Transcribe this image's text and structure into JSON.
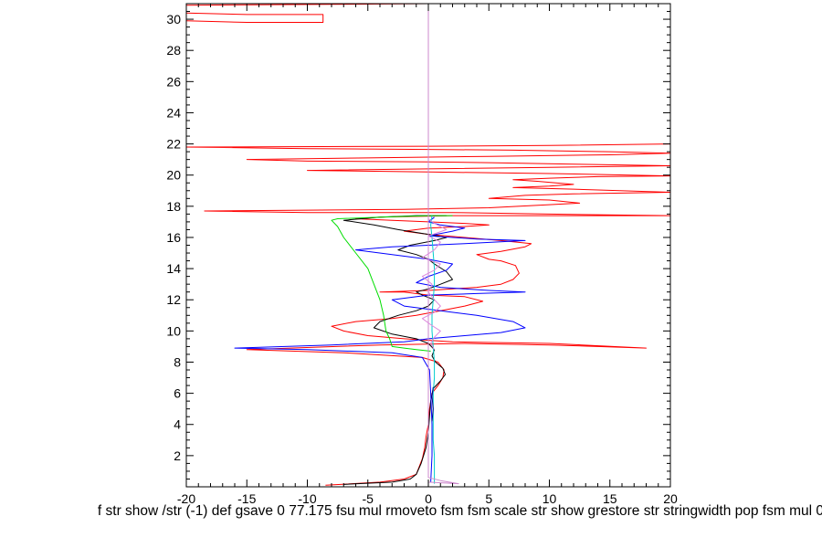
{
  "chart_data": {
    "type": "line",
    "xlim": [
      -20,
      20
    ],
    "ylim": [
      0,
      31
    ],
    "x_ticks": [
      -20,
      -15,
      -10,
      -5,
      0,
      5,
      10,
      15,
      20
    ],
    "y_ticks": [
      2,
      4,
      6,
      8,
      10,
      12,
      14,
      16,
      18,
      20,
      22,
      24,
      26,
      28,
      30
    ],
    "grid": false,
    "legend": "none",
    "caption": "f str show /str (-1) def gsave 0 77.175 fsu mul rmoveto fsm fsm scale str show grestore str stringwidth pop fsm mul 0",
    "series": [
      {
        "color": "#ff0000",
        "points": [
          [
            -8.5,
            0.1
          ],
          [
            -4,
            0.3
          ],
          [
            -2,
            0.5
          ],
          [
            -1,
            0.8
          ],
          [
            -0.8,
            1.2
          ],
          [
            -0.5,
            1.8
          ],
          [
            -0.3,
            2.5
          ],
          [
            -0.2,
            3.2
          ],
          [
            0,
            4
          ],
          [
            0.1,
            5
          ],
          [
            0.3,
            6
          ],
          [
            0.8,
            6.5
          ],
          [
            1.2,
            7
          ],
          [
            1.3,
            7.5
          ],
          [
            0.8,
            8
          ],
          [
            -0.5,
            8.3
          ],
          [
            -7,
            8.6
          ],
          [
            -15,
            8.8
          ],
          [
            -4,
            9.1
          ],
          [
            3,
            9.2
          ],
          [
            10,
            9.1
          ],
          [
            18,
            8.9
          ],
          [
            10,
            9.2
          ],
          [
            2,
            9.3
          ],
          [
            -2,
            9.5
          ],
          [
            -5,
            9.7
          ],
          [
            -7,
            10
          ],
          [
            -8,
            10.3
          ],
          [
            -6,
            10.6
          ],
          [
            -3,
            10.8
          ],
          [
            -1,
            11
          ],
          [
            1,
            11.3
          ],
          [
            3,
            11.6
          ],
          [
            4.5,
            11.9
          ],
          [
            3,
            12.2
          ],
          [
            0,
            12.3
          ],
          [
            -2,
            12.5
          ],
          [
            -4,
            12.5
          ],
          [
            0,
            12.6
          ],
          [
            4,
            12.8
          ],
          [
            6,
            13
          ],
          [
            7,
            13.3
          ],
          [
            7.5,
            13.7
          ],
          [
            7.2,
            14.2
          ],
          [
            6,
            14.5
          ],
          [
            5,
            14.6
          ],
          [
            4,
            14.9
          ],
          [
            6,
            15.1
          ],
          [
            8,
            15.4
          ],
          [
            8.5,
            15.6
          ],
          [
            6,
            15.8
          ],
          [
            3,
            16
          ],
          [
            0,
            16.2
          ],
          [
            -2,
            16.4
          ],
          [
            0,
            16.6
          ],
          [
            3,
            16.7
          ],
          [
            5,
            16.8
          ],
          [
            3,
            16.9
          ],
          [
            0,
            17
          ],
          [
            -3,
            17.1
          ],
          [
            -6,
            17.2
          ],
          [
            -4,
            17.3
          ],
          [
            2,
            17.4
          ],
          [
            8,
            17.4
          ],
          [
            20,
            17.4
          ],
          [
            10,
            17.5
          ],
          [
            2,
            17.6
          ],
          [
            -10,
            17.6
          ],
          [
            -18.5,
            17.7
          ],
          [
            -10,
            17.75
          ],
          [
            -2,
            17.8
          ],
          [
            5,
            17.9
          ],
          [
            10,
            18.1
          ],
          [
            12.5,
            18.2
          ],
          [
            10,
            18.4
          ],
          [
            5,
            18.5
          ],
          [
            8,
            18.7
          ],
          [
            12,
            18.8
          ],
          [
            20,
            18.9
          ],
          [
            12,
            19.1
          ],
          [
            7,
            19.2
          ],
          [
            10,
            19.3
          ],
          [
            12,
            19.4
          ],
          [
            9,
            19.6
          ],
          [
            7,
            19.7
          ],
          [
            10,
            19.8
          ],
          [
            14,
            19.9
          ],
          [
            20,
            19.95
          ],
          [
            10,
            20.1
          ],
          [
            0,
            20.2
          ],
          [
            -10,
            20.3
          ],
          [
            0,
            20.4
          ],
          [
            10,
            20.5
          ],
          [
            20,
            20.6
          ],
          [
            12,
            20.7
          ],
          [
            5,
            20.8
          ],
          [
            0,
            20.85
          ],
          [
            -10,
            20.9
          ],
          [
            -15,
            21
          ],
          [
            -5,
            21.1
          ],
          [
            5,
            21.2
          ],
          [
            15,
            21.3
          ],
          [
            20,
            21.4
          ],
          [
            15,
            21.5
          ],
          [
            7,
            21.6
          ],
          [
            0,
            21.65
          ],
          [
            -10,
            21.7
          ],
          [
            -20,
            21.8
          ],
          [
            0,
            21.85
          ],
          [
            10,
            21.9
          ],
          [
            20,
            22
          ]
        ]
      },
      {
        "color": "#ff0000",
        "points": [
          [
            -20,
            29.9
          ],
          [
            -15,
            29.8
          ],
          [
            -8.7,
            29.8
          ],
          [
            -8.7,
            30.3
          ],
          [
            -15,
            30.3
          ],
          [
            -20,
            30.4
          ]
        ]
      },
      {
        "color": "#ff0000",
        "points": [
          [
            -20,
            30.9
          ],
          [
            -10,
            30.95
          ],
          [
            0,
            31
          ]
        ]
      },
      {
        "color": "#000000",
        "points": [
          [
            -7,
            0.15
          ],
          [
            -3,
            0.3
          ],
          [
            -1.5,
            0.5
          ],
          [
            -1,
            0.8
          ],
          [
            -0.6,
            1.5
          ],
          [
            -0.2,
            2.5
          ],
          [
            0,
            3.5
          ],
          [
            0.1,
            4.5
          ],
          [
            0.2,
            5.5
          ],
          [
            0.4,
            6.3
          ],
          [
            1,
            6.8
          ],
          [
            1.4,
            7.2
          ],
          [
            1.2,
            7.6
          ],
          [
            0.6,
            8
          ],
          [
            0.3,
            8.4
          ],
          [
            0.5,
            8.8
          ],
          [
            0,
            9.2
          ],
          [
            -1,
            9.5
          ],
          [
            -3,
            9.8
          ],
          [
            -4.5,
            10.2
          ],
          [
            -4,
            10.6
          ],
          [
            -2.5,
            11
          ],
          [
            -1,
            11.3
          ],
          [
            0,
            11.6
          ],
          [
            0.5,
            12
          ],
          [
            -0.5,
            12.3
          ],
          [
            -1,
            12.5
          ],
          [
            0,
            12.7
          ],
          [
            1,
            13
          ],
          [
            2,
            13.3
          ],
          [
            1.5,
            13.8
          ],
          [
            0.5,
            14.3
          ],
          [
            0,
            14.6
          ],
          [
            -1,
            14.9
          ],
          [
            -2.5,
            15.2
          ],
          [
            -1.5,
            15.5
          ],
          [
            0.5,
            15.8
          ],
          [
            1.5,
            16
          ],
          [
            0,
            16.2
          ],
          [
            -2.5,
            16.5
          ],
          [
            -4.5,
            16.8
          ],
          [
            -7,
            17.1
          ],
          [
            -4,
            17.3
          ],
          [
            -1,
            17.4
          ],
          [
            1.5,
            17.4
          ]
        ]
      },
      {
        "color": "#0000ff",
        "points": [
          [
            0.2,
            0.3
          ],
          [
            0.3,
            2
          ],
          [
            0.3,
            4
          ],
          [
            0.2,
            6
          ],
          [
            0.1,
            7.5
          ],
          [
            -0.5,
            8.3
          ],
          [
            -3,
            8.6
          ],
          [
            -10,
            8.8
          ],
          [
            -16,
            8.9
          ],
          [
            -8,
            9.1
          ],
          [
            -2,
            9.3
          ],
          [
            0,
            9.5
          ],
          [
            3,
            9.7
          ],
          [
            6,
            9.9
          ],
          [
            8,
            10.2
          ],
          [
            7,
            10.6
          ],
          [
            4,
            11
          ],
          [
            1,
            11.3
          ],
          [
            -2,
            11.6
          ],
          [
            -3,
            12
          ],
          [
            0,
            12.3
          ],
          [
            4,
            12.4
          ],
          [
            8,
            12.5
          ],
          [
            5,
            12.6
          ],
          [
            1,
            12.8
          ],
          [
            -1,
            13.1
          ],
          [
            0,
            13.5
          ],
          [
            1.5,
            13.9
          ],
          [
            2,
            14.3
          ],
          [
            0,
            14.6
          ],
          [
            -3,
            14.9
          ],
          [
            -6,
            15.2
          ],
          [
            -3,
            15.4
          ],
          [
            3,
            15.6
          ],
          [
            8,
            15.8
          ],
          [
            4,
            15.9
          ],
          [
            0,
            16.1
          ],
          [
            2,
            16.4
          ],
          [
            3,
            16.6
          ],
          [
            1,
            16.8
          ],
          [
            0,
            17
          ],
          [
            0.5,
            17.3
          ]
        ]
      },
      {
        "color": "#00dd00",
        "points": [
          [
            0.2,
            8.7
          ],
          [
            -1,
            8.8
          ],
          [
            -2,
            8.9
          ],
          [
            -3,
            9
          ],
          [
            -3.2,
            9.5
          ],
          [
            -3.5,
            10
          ],
          [
            -3.7,
            11
          ],
          [
            -4,
            12
          ],
          [
            -4.5,
            13
          ],
          [
            -5,
            14
          ],
          [
            -6,
            15
          ],
          [
            -7,
            16
          ],
          [
            -7.5,
            16.7
          ],
          [
            -8,
            17.1
          ],
          [
            -7.5,
            17.2
          ],
          [
            -4,
            17.3
          ],
          [
            0,
            17.4
          ],
          [
            2,
            17.4
          ]
        ]
      },
      {
        "color": "#00cccc",
        "points": [
          [
            0.5,
            0.2
          ],
          [
            0.5,
            1
          ],
          [
            0.5,
            2
          ],
          [
            0.4,
            3
          ],
          [
            0.4,
            4
          ],
          [
            0.4,
            5
          ],
          [
            0.4,
            6
          ],
          [
            0.5,
            7
          ],
          [
            0.5,
            8
          ],
          [
            0.4,
            9
          ],
          [
            0.3,
            10
          ],
          [
            0.3,
            11
          ],
          [
            0.4,
            12
          ],
          [
            0.5,
            13
          ],
          [
            0.5,
            14
          ],
          [
            0.4,
            15
          ],
          [
            0.3,
            16
          ],
          [
            0.2,
            16.8
          ],
          [
            0.3,
            17.4
          ]
        ]
      },
      {
        "color": "#cc88cc",
        "points": [
          [
            0,
            0.3
          ],
          [
            2.5,
            0.2
          ],
          [
            1,
            0.4
          ],
          [
            0,
            0.6
          ],
          [
            0,
            31
          ]
        ]
      },
      {
        "color": "#dd88dd",
        "points": [
          [
            0.5,
            8.8
          ],
          [
            0.2,
            9.2
          ],
          [
            0.5,
            9.6
          ],
          [
            1,
            10
          ],
          [
            0.2,
            10.4
          ],
          [
            -0.5,
            10.8
          ],
          [
            0.5,
            11.2
          ],
          [
            1,
            11.6
          ],
          [
            0.5,
            12
          ],
          [
            0,
            12.5
          ],
          [
            0.3,
            13
          ],
          [
            -0.5,
            13.5
          ],
          [
            0.5,
            13.9
          ],
          [
            1,
            14.3
          ],
          [
            -0.5,
            14.7
          ],
          [
            0.5,
            15.2
          ],
          [
            1,
            15.7
          ],
          [
            0,
            16.1
          ],
          [
            1.5,
            16.5
          ],
          [
            0.5,
            16.9
          ],
          [
            0,
            17.2
          ]
        ]
      },
      {
        "color": "#000088",
        "points": [
          [
            0.3,
            4.2
          ],
          [
            0.4,
            5
          ],
          [
            0.3,
            5.8
          ],
          [
            0.4,
            6.4
          ]
        ]
      }
    ]
  }
}
